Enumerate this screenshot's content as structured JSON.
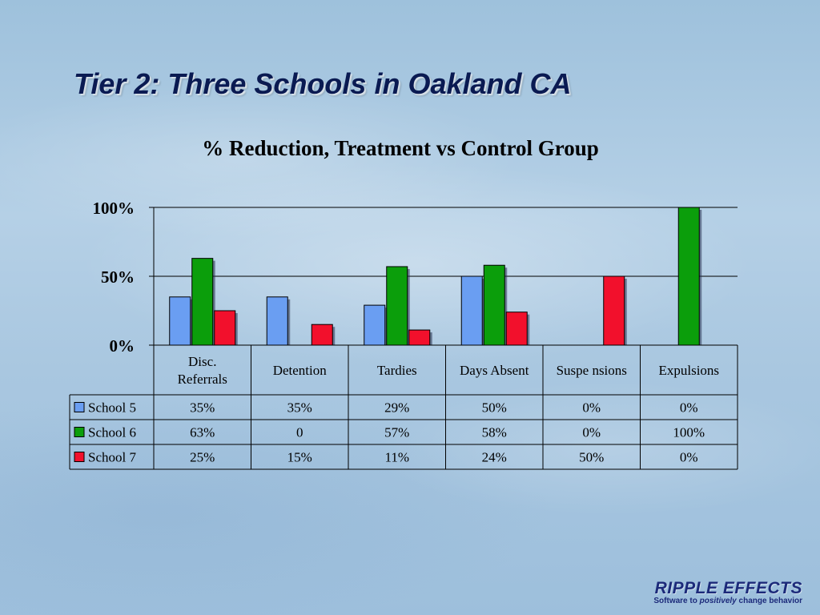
{
  "slide": {
    "title": "Tier 2:  Three Schools in Oakland CA"
  },
  "logo": {
    "name": "RIPPLE EFFECTS",
    "tagline_pre": "Software to ",
    "tagline_em": "positively",
    "tagline_post": " change behavior"
  },
  "chart_data": {
    "type": "bar",
    "title": "% Reduction, Treatment vs Control Group",
    "categories": [
      [
        "Disc.",
        "Referrals"
      ],
      [
        "Detention"
      ],
      [
        "Tardies"
      ],
      [
        "Days Absent"
      ],
      [
        "Suspe nsions"
      ],
      [
        "Expulsions"
      ]
    ],
    "ylim": [
      0,
      100
    ],
    "yticks": [
      0,
      50,
      100
    ],
    "ytick_labels": [
      "0%",
      "50%",
      "100%"
    ],
    "grid": true,
    "legend": "data-table",
    "series": [
      {
        "name": "School 5",
        "color": "#6a9ef2",
        "values": [
          35,
          35,
          29,
          50,
          0,
          0
        ],
        "labels": [
          "35%",
          "35%",
          "29%",
          "50%",
          "0%",
          "0%"
        ]
      },
      {
        "name": "School 6",
        "color": "#0b9e0b",
        "values": [
          63,
          0,
          57,
          58,
          0,
          100
        ],
        "labels": [
          "63%",
          "0",
          "57%",
          "58%",
          "0%",
          "100%"
        ]
      },
      {
        "name": "School 7",
        "color": "#f2102c",
        "values": [
          25,
          15,
          11,
          24,
          50,
          0
        ],
        "labels": [
          "25%",
          "15%",
          "11%",
          "24%",
          "50%",
          "0%"
        ]
      }
    ]
  }
}
